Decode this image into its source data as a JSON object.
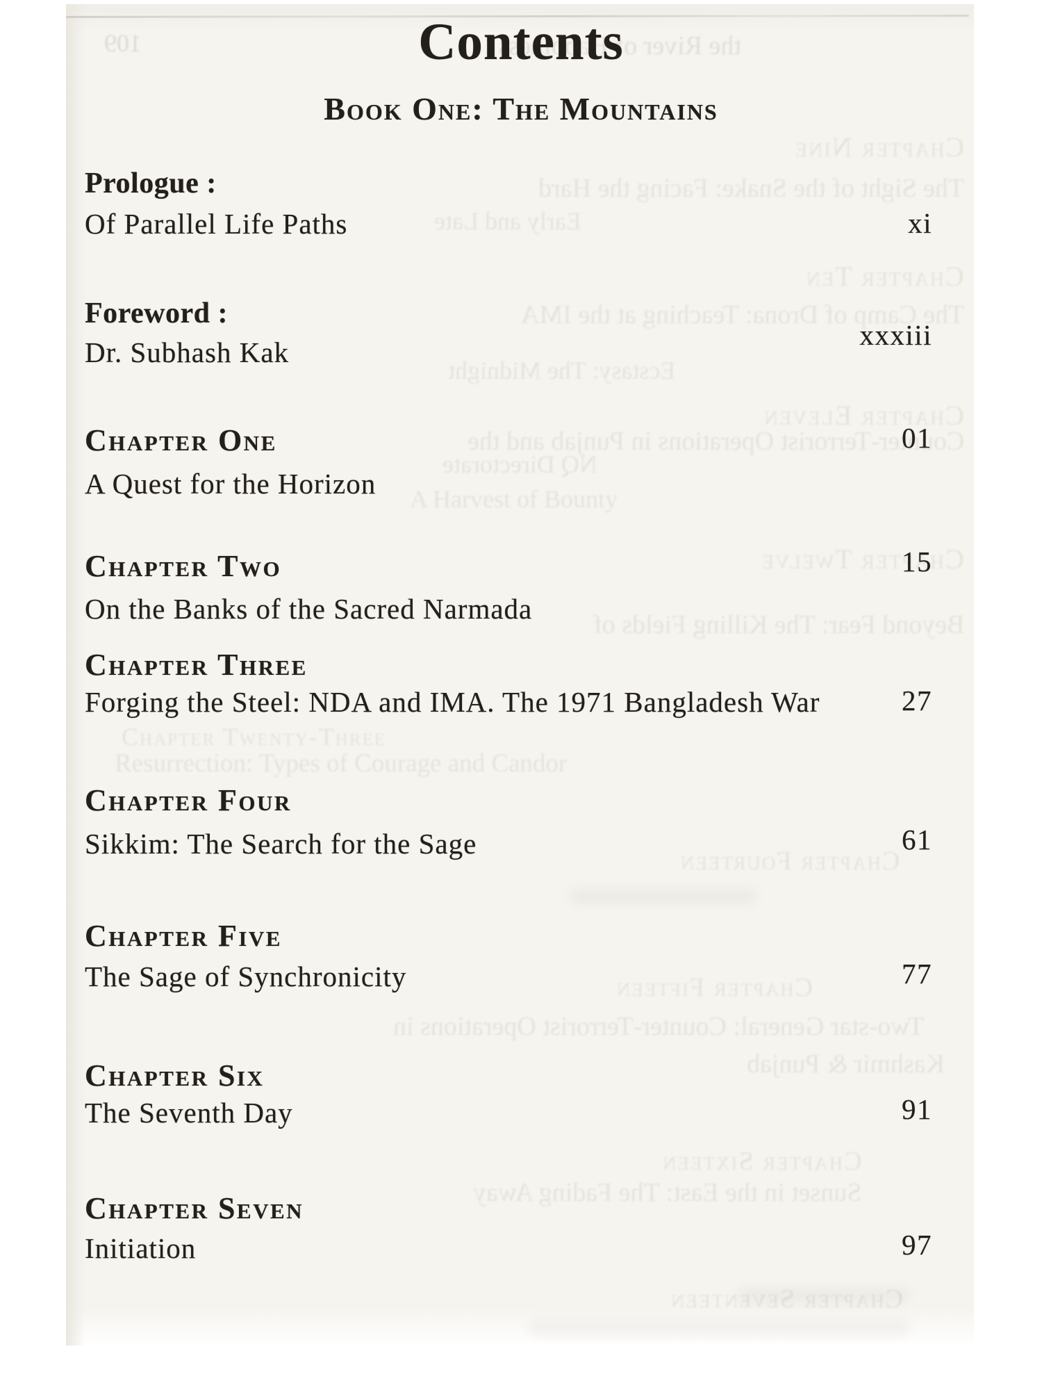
{
  "page": {
    "title": "Contents",
    "book_heading": "Book One: The Mountains"
  },
  "toc": {
    "front_matter": [
      {
        "heading": "Prologue :",
        "subtitle": "Of Parallel Life Paths",
        "page": "xi"
      },
      {
        "heading": "Foreword :",
        "subtitle": "Dr. Subhash Kak",
        "page": "xxxiii"
      }
    ],
    "chapters": [
      {
        "heading": "Chapter One",
        "subtitle": "A Quest for the Horizon",
        "page": "01"
      },
      {
        "heading": "Chapter Two",
        "subtitle": "On the Banks of the Sacred Narmada",
        "page": "15"
      },
      {
        "heading": "Chapter Three",
        "subtitle": "Forging the Steel: NDA and IMA. The 1971 Bangladesh War",
        "page": "27"
      },
      {
        "heading": "Chapter Four",
        "subtitle": "Sikkim: The Search for the Sage",
        "page": "61"
      },
      {
        "heading": "Chapter Five",
        "subtitle": "The Sage of Synchronicity",
        "page": "77"
      },
      {
        "heading": "Chapter Six",
        "subtitle": "The Seventh Day",
        "page": "91"
      },
      {
        "heading": "Chapter Seven",
        "subtitle": "Initiation",
        "page": "97"
      }
    ]
  },
  "ghost_bleedthrough": {
    "lines": [
      "109",
      "the River of Happiness)",
      "Chapter Nine",
      "The Sight of the Snake: Facing the Hard",
      "Early and Late",
      "Chapter Ten",
      "The Camp of Drona: Teaching at the IMA",
      "Ecstasy: The Midnight",
      "Chapter Eleven",
      "Counter-Terrorist Operations in Punjab and the",
      "NQ Directorate",
      "A Harvest of Bounty",
      "Chapter Twelve",
      "Beyond Fear: The Killing Fields of",
      "Chapter Twenty-Three",
      "Resurrection: Types of Courage and Candor",
      "Chapter Fourteen",
      "Chapter Fifteen",
      "Two-star General: Counter-Terrorist Operations in",
      "Kashmir & Punjab",
      "Chapter Sixteen",
      "Sunset in the East: The Fading Away",
      "Chapter Seventeen"
    ]
  },
  "colors": {
    "paper": "#f6f4ef",
    "ink": "#231f1c",
    "bleedthrough": "#86806f",
    "margin": "#ffffff"
  }
}
